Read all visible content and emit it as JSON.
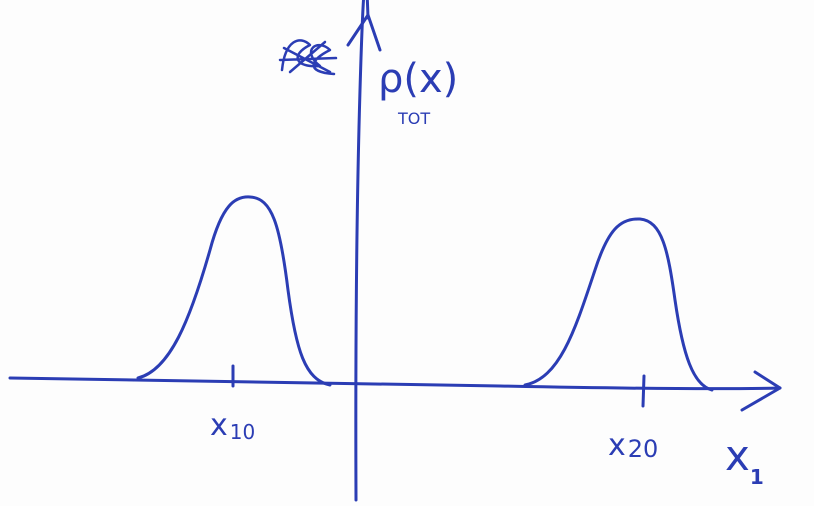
{
  "y_axis_label": {
    "text": "ρ(x)",
    "subscript": "TOT"
  },
  "ticks": [
    {
      "text": "x",
      "subscript": "10"
    },
    {
      "text": "x",
      "subscript": "20"
    }
  ],
  "x_axis_label": {
    "text": "x",
    "subscript": "1"
  }
}
